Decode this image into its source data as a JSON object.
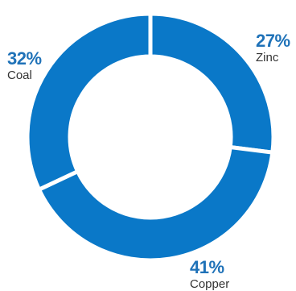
{
  "chart_data": {
    "type": "pie",
    "style": "donut",
    "title": "",
    "categories": [
      "Zinc",
      "Copper",
      "Coal"
    ],
    "values": [
      27,
      41,
      32
    ],
    "value_labels": [
      "27%",
      "41%",
      "32%"
    ],
    "unit": "%",
    "start_angle_deg": 0,
    "direction": "clockwise",
    "legend": "none",
    "colors": {
      "slice": "#0a78c8",
      "separator": "#ffffff",
      "label_value": "#1f72b8",
      "label_name": "#333333"
    }
  }
}
